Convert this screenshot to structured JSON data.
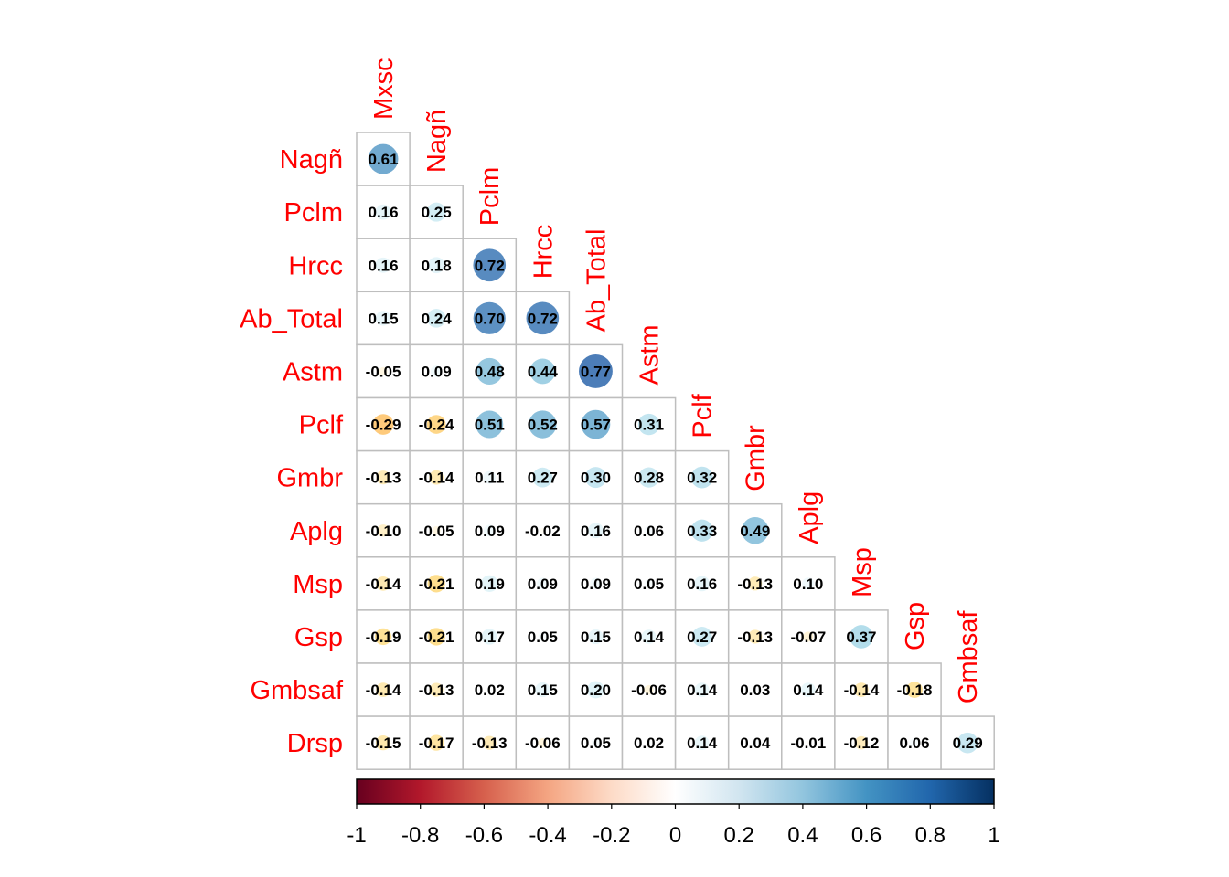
{
  "chart_data": {
    "type": "heatmap",
    "variables": [
      "Mxsc",
      "Nagñ",
      "Pclm",
      "Hrcc",
      "Ab_Total",
      "Astm",
      "Pclf",
      "Gmbr",
      "Aplg",
      "Msp",
      "Gsp",
      "Gmbsaf",
      "Drsp"
    ],
    "row_labels": [
      "Nagñ",
      "Pclm",
      "Hrcc",
      "Ab_Total",
      "Astm",
      "Pclf",
      "Gmbr",
      "Aplg",
      "Msp",
      "Gsp",
      "Gmbsaf",
      "Drsp"
    ],
    "col_labels": [
      "Mxsc",
      "Nagñ",
      "Pclm",
      "Hrcc",
      "Ab_Total",
      "Astm",
      "Pclf",
      "Gmbr",
      "Aplg",
      "Msp",
      "Gsp",
      "Gmbsaf"
    ],
    "values": [
      [
        0.61
      ],
      [
        0.16,
        0.25
      ],
      [
        0.16,
        0.18,
        0.72
      ],
      [
        0.15,
        0.24,
        0.7,
        0.72
      ],
      [
        -0.05,
        0.09,
        0.48,
        0.44,
        0.77
      ],
      [
        -0.29,
        -0.24,
        0.51,
        0.52,
        0.57,
        0.31
      ],
      [
        -0.13,
        -0.14,
        0.11,
        0.27,
        0.3,
        0.28,
        0.32
      ],
      [
        -0.1,
        -0.05,
        0.09,
        -0.02,
        0.16,
        0.06,
        0.33,
        0.49
      ],
      [
        -0.14,
        -0.21,
        0.19,
        0.09,
        0.09,
        0.05,
        0.16,
        -0.13,
        0.1
      ],
      [
        -0.19,
        -0.21,
        0.17,
        0.05,
        0.15,
        0.14,
        0.27,
        -0.13,
        -0.07,
        0.37
      ],
      [
        -0.14,
        -0.13,
        0.02,
        0.15,
        0.2,
        -0.06,
        0.14,
        0.03,
        0.14,
        -0.14,
        -0.18
      ],
      [
        -0.15,
        -0.17,
        -0.13,
        -0.06,
        0.05,
        0.02,
        0.14,
        0.04,
        -0.01,
        -0.12,
        0.06,
        0.29
      ]
    ],
    "value_labels": [
      [
        "0.61"
      ],
      [
        "0.16",
        "0.25"
      ],
      [
        "0.16",
        "0.18",
        "0.72"
      ],
      [
        "0.15",
        "0.24",
        "0.70",
        "0.72"
      ],
      [
        "-0.05",
        "0.09",
        "0.48",
        "0.44",
        "0.77"
      ],
      [
        "-0.29",
        "-0.24",
        "0.51",
        "0.52",
        "0.57",
        "0.31"
      ],
      [
        "-0.13",
        "-0.14",
        "0.11",
        "0.27",
        "0.30",
        "0.28",
        "0.32"
      ],
      [
        "-0.10",
        "-0.05",
        "0.09",
        "-0.02",
        "0.16",
        "0.06",
        "0.33",
        "0.49"
      ],
      [
        "-0.14",
        "-0.21",
        "0.19",
        "0.09",
        "0.09",
        "0.05",
        "0.16",
        "-0.13",
        "0.10"
      ],
      [
        "-0.19",
        "-0.21",
        "0.17",
        "0.05",
        "0.15",
        "0.14",
        "0.27",
        "-0.13",
        "-0.07",
        "0.37"
      ],
      [
        "-0.14",
        "-0.13",
        "0.02",
        "0.15",
        "0.20",
        "-0.06",
        "0.14",
        "0.03",
        "0.14",
        "-0.14",
        "-0.18"
      ],
      [
        "-0.15",
        "-0.17",
        "-0.13",
        "-0.06",
        "0.05",
        "0.02",
        "0.14",
        "0.04",
        "-0.01",
        "-0.12",
        "0.06",
        "0.29"
      ]
    ],
    "shape": "circle",
    "layout": "lower triangle",
    "color_scale": {
      "range": [
        -1,
        1
      ],
      "ticks": [
        -1,
        -0.8,
        -0.6,
        -0.4,
        -0.2,
        0,
        0.2,
        0.4,
        0.6,
        0.8,
        1
      ],
      "tick_labels": [
        "-1",
        "-0.8",
        "-0.6",
        "-0.4",
        "-0.2",
        "0",
        "0.2",
        "0.4",
        "0.6",
        "0.8",
        "1"
      ],
      "colors": [
        "#67001F",
        "#B2182B",
        "#D6604D",
        "#F4A582",
        "#FDDBC7",
        "#FFFFFF",
        "#D1E5F0",
        "#92C5DE",
        "#4393C3",
        "#2166AC",
        "#053061"
      ],
      "palette": [
        "#A50026",
        "#D73027",
        "#F46D43",
        "#FDAE61",
        "#FEE090",
        "#FFFFFF",
        "#E0F3F8",
        "#ABD9E9",
        "#74ADD1",
        "#4575B4",
        "#313695"
      ]
    },
    "label_color": "#FF0000",
    "grid_color": "#BEBEBE",
    "legend_position": "bottom"
  }
}
